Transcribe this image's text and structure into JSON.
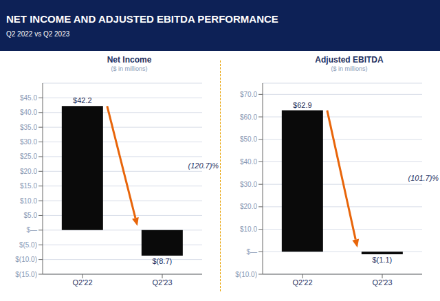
{
  "title": "NET INCOME AND ADJUSTED EBITDA PERFORMANCE",
  "subtitle": "Q2 2022 vs Q2 2023",
  "chart_data": [
    {
      "type": "bar",
      "title": "Net Income",
      "subtitle": "($ in millions)",
      "categories": [
        "Q2'22",
        "Q2'23"
      ],
      "values": [
        42.2,
        -8.7
      ],
      "value_labels": [
        "$42.2",
        "$(8.7)"
      ],
      "data_labels": true,
      "color": "#0a0a0a",
      "ylim": [
        -15.0,
        50.0
      ],
      "yticks": [
        {
          "value": -15.0,
          "label": "$(15.0)"
        },
        {
          "value": -10.0,
          "label": "$(10.0)"
        },
        {
          "value": -5.0,
          "label": "$(5.0)"
        },
        {
          "value": 0.0,
          "label": "$—"
        },
        {
          "value": 5.0,
          "label": "$5.0"
        },
        {
          "value": 10.0,
          "label": "$10.0"
        },
        {
          "value": 15.0,
          "label": "$15.0"
        },
        {
          "value": 20.0,
          "label": "$20.0"
        },
        {
          "value": 25.0,
          "label": "$25.0"
        },
        {
          "value": 30.0,
          "label": "$30.0"
        },
        {
          "value": 35.0,
          "label": "$35.0"
        },
        {
          "value": 40.0,
          "label": "$40.0"
        },
        {
          "value": 45.0,
          "label": "$45.0"
        }
      ],
      "grid": true,
      "annotations": [
        "(120.7)%"
      ]
    },
    {
      "type": "bar",
      "title": "Adjusted EBITDA",
      "subtitle": "($ in millions)",
      "categories": [
        "Q2'22",
        "Q2'23"
      ],
      "values": [
        62.9,
        -1.1
      ],
      "value_labels": [
        "$62.9",
        "$(1.1)"
      ],
      "data_labels": true,
      "color": "#0a0a0a",
      "ylim": [
        -10.0,
        75.0
      ],
      "yticks": [
        {
          "value": -10.0,
          "label": "$(10.0)"
        },
        {
          "value": 0.0,
          "label": "$—"
        },
        {
          "value": 10.0,
          "label": "$10.0"
        },
        {
          "value": 20.0,
          "label": "$20.0"
        },
        {
          "value": 30.0,
          "label": "$30.0"
        },
        {
          "value": 40.0,
          "label": "$40.0"
        },
        {
          "value": 50.0,
          "label": "$50.0"
        },
        {
          "value": 60.0,
          "label": "$60.0"
        },
        {
          "value": 70.0,
          "label": "$70.0"
        }
      ],
      "grid": true,
      "annotations": [
        "(101.7)%"
      ]
    }
  ]
}
